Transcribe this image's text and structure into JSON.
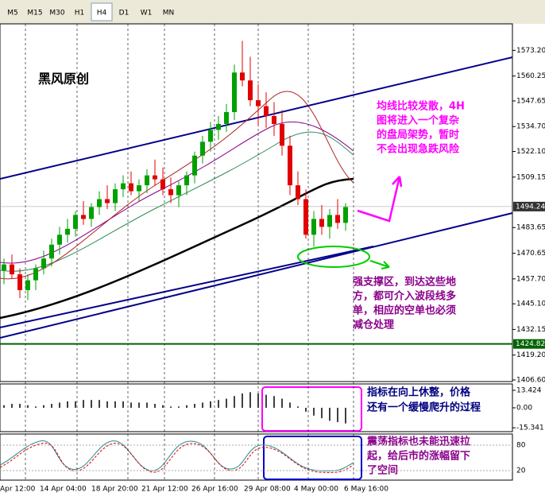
{
  "toolbar": [
    "M5",
    "M15",
    "M30",
    "H1",
    "H4",
    "D1",
    "W1",
    "MN"
  ],
  "active_timeframe": "H4",
  "chart": {
    "type": "candlestick",
    "ohlc": [
      [
        1462,
        1468,
        1455,
        1465
      ],
      [
        1465,
        1470,
        1458,
        1460
      ],
      [
        1460,
        1463,
        1448,
        1452
      ],
      [
        1452,
        1460,
        1447,
        1457
      ],
      [
        1457,
        1465,
        1452,
        1463
      ],
      [
        1463,
        1472,
        1460,
        1468
      ],
      [
        1468,
        1478,
        1464,
        1475
      ],
      [
        1475,
        1484,
        1470,
        1480
      ],
      [
        1480,
        1488,
        1476,
        1483
      ],
      [
        1483,
        1492,
        1479,
        1490
      ],
      [
        1490,
        1497,
        1485,
        1488
      ],
      [
        1488,
        1496,
        1484,
        1494
      ],
      [
        1494,
        1502,
        1490,
        1498
      ],
      [
        1498,
        1505,
        1493,
        1496
      ],
      [
        1496,
        1506,
        1492,
        1503
      ],
      [
        1503,
        1510,
        1499,
        1506
      ],
      [
        1506,
        1512,
        1500,
        1502
      ],
      [
        1502,
        1508,
        1497,
        1505
      ],
      [
        1505,
        1513,
        1501,
        1510
      ],
      [
        1510,
        1518,
        1505,
        1508
      ],
      [
        1508,
        1514,
        1500,
        1503
      ],
      [
        1503,
        1509,
        1496,
        1500
      ],
      [
        1500,
        1507,
        1494,
        1505
      ],
      [
        1505,
        1512,
        1500,
        1510
      ],
      [
        1510,
        1522,
        1506,
        1520
      ],
      [
        1520,
        1530,
        1516,
        1527
      ],
      [
        1527,
        1537,
        1522,
        1533
      ],
      [
        1533,
        1540,
        1528,
        1536
      ],
      [
        1536,
        1546,
        1532,
        1542
      ],
      [
        1542,
        1566,
        1538,
        1562
      ],
      [
        1562,
        1578,
        1555,
        1558
      ],
      [
        1558,
        1570,
        1545,
        1548
      ],
      [
        1548,
        1556,
        1535,
        1545
      ],
      [
        1545,
        1552,
        1534,
        1540
      ],
      [
        1540,
        1547,
        1530,
        1536
      ],
      [
        1536,
        1543,
        1520,
        1525
      ],
      [
        1525,
        1530,
        1500,
        1505
      ],
      [
        1505,
        1512,
        1495,
        1498
      ],
      [
        1498,
        1503,
        1478,
        1480
      ],
      [
        1480,
        1492,
        1474,
        1488
      ],
      [
        1488,
        1495,
        1480,
        1484
      ],
      [
        1484,
        1493,
        1478,
        1490
      ],
      [
        1490,
        1498,
        1483,
        1486
      ],
      [
        1486,
        1496,
        1482,
        1494
      ]
    ],
    "up_color": "#00a000",
    "down_color": "#e00000",
    "ylim": [
      1405.8,
      1586.6
    ],
    "yticks": [
      {
        "value": 1573.2,
        "label": "1573.20"
      },
      {
        "value": 1560.25,
        "label": "1560.25"
      },
      {
        "value": 1547.65,
        "label": "1547.65"
      },
      {
        "value": 1534.7,
        "label": "1534.70"
      },
      {
        "value": 1522.1,
        "label": "1522.10"
      },
      {
        "value": 1509.15,
        "label": "1509.15"
      },
      {
        "value": 1483.65,
        "label": "1483.65"
      },
      {
        "value": 1470.65,
        "label": "1470.65"
      },
      {
        "value": 1457.7,
        "label": "1457.70"
      },
      {
        "value": 1445.1,
        "label": "1445.10"
      },
      {
        "value": 1432.15,
        "label": "1432.15"
      },
      {
        "value": 1419.2,
        "label": "1419.20"
      },
      {
        "value": 1406.6,
        "label": "1406.60"
      }
    ],
    "current_price": 1494.24,
    "support_level": 1424.82,
    "x_labels": [
      "Apr 12:00",
      "14 Apr 04:00",
      "18 Apr 20:00",
      "21 Apr 12:00",
      "26 Apr 16:00",
      "29 Apr 08:00",
      "4 May 00:00",
      "6 May 16:00"
    ]
  },
  "macd": {
    "type": "bar",
    "values": [
      2,
      3,
      3,
      2,
      1,
      2,
      3,
      4,
      5,
      5,
      6,
      6,
      6,
      5,
      5,
      5,
      4,
      4,
      4,
      3,
      2,
      1,
      1,
      2,
      3,
      4,
      5,
      6,
      7,
      9,
      11,
      12,
      11,
      10,
      9,
      7,
      4,
      1,
      -3,
      -6,
      -8,
      -10,
      -11,
      -12
    ],
    "ylim": [
      -18.3,
      18.3
    ],
    "yticks": [
      13.424,
      {
        "value": 0,
        "label": "0.00"
      },
      -15.341
    ]
  },
  "stochastic": {
    "ylim": [
      -2.5,
      106.3
    ],
    "yticks": [
      80,
      20
    ]
  },
  "annotations": {
    "author": "黑风原创",
    "trend_note": [
      "均线比较发散，4H",
      "图将进入一个复杂",
      "的盘局架势，暂时",
      "不会出现急跌风险"
    ],
    "support_note": [
      "强支撑区，到达这些地",
      "方，都可介入波段线多",
      "单，相应的空单也必须",
      "减仓处理"
    ],
    "macd_note": [
      "指标在向上休整，价格",
      "还有一个缓慢爬升的过程"
    ],
    "stoch_note": [
      "震荡指标也未能迅速拉",
      "起，给后市的涨幅留下",
      "了空间"
    ]
  }
}
